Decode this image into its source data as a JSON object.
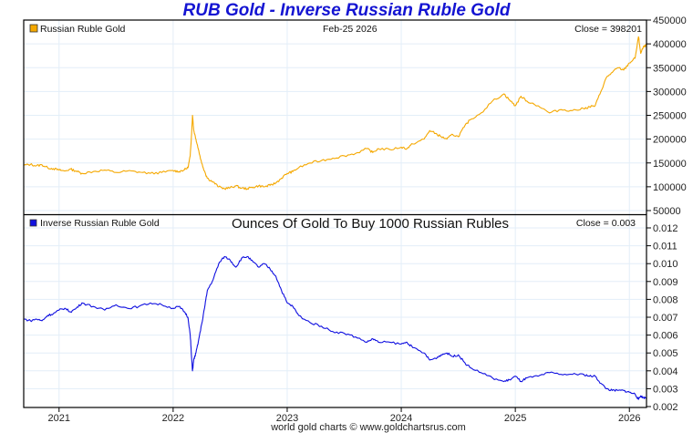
{
  "title": "RUB Gold - Inverse Russian Ruble Gold",
  "footer": "world gold charts © www.goldchartsrus.com",
  "colors": {
    "gold_series": "#f5a800",
    "inverse_series": "#1010e0",
    "title": "#1414d2",
    "grid": "#e3eef8"
  },
  "chart_data": [
    {
      "type": "line",
      "panel": "top",
      "legend": "Russian Ruble Gold",
      "date_label": "Feb-25  2026",
      "close_label": "Close = 398201",
      "ylim": [
        50000,
        450000
      ],
      "yticks": [
        50000,
        100000,
        150000,
        200000,
        250000,
        300000,
        350000,
        400000,
        450000
      ],
      "ytick_labels": [
        "50000",
        "100000",
        "150000",
        "200000",
        "250000",
        "300000",
        "350000",
        "400000",
        "450000"
      ],
      "xlim": [
        2020.69,
        2026.15
      ],
      "xticks": [
        2021,
        2022,
        2023,
        2024,
        2025,
        2026
      ],
      "xtick_labels": [
        "2021",
        "2022",
        "2023",
        "2024",
        "2025",
        "2026"
      ],
      "grid": true,
      "series": [
        {
          "name": "Russian Ruble Gold",
          "x": [
            2020.69,
            2020.75,
            2020.8,
            2020.85,
            2020.9,
            2020.95,
            2021.0,
            2021.05,
            2021.1,
            2021.15,
            2021.2,
            2021.3,
            2021.4,
            2021.5,
            2021.6,
            2021.7,
            2021.8,
            2021.9,
            2022.0,
            2022.05,
            2022.1,
            2022.13,
            2022.15,
            2022.16,
            2022.17,
            2022.18,
            2022.2,
            2022.22,
            2022.25,
            2022.28,
            2022.3,
            2022.35,
            2022.4,
            2022.45,
            2022.5,
            2022.55,
            2022.6,
            2022.65,
            2022.7,
            2022.75,
            2022.8,
            2022.85,
            2022.9,
            2022.95,
            2023.0,
            2023.05,
            2023.1,
            2023.2,
            2023.3,
            2023.4,
            2023.5,
            2023.6,
            2023.7,
            2023.75,
            2023.8,
            2023.9,
            2024.0,
            2024.05,
            2024.1,
            2024.2,
            2024.25,
            2024.3,
            2024.35,
            2024.4,
            2024.45,
            2024.5,
            2024.55,
            2024.6,
            2024.7,
            2024.8,
            2024.9,
            2024.95,
            2025.0,
            2025.05,
            2025.1,
            2025.2,
            2025.3,
            2025.4,
            2025.5,
            2025.6,
            2025.65,
            2025.7,
            2025.75,
            2025.8,
            2025.85,
            2025.9,
            2025.95,
            2026.0,
            2026.05,
            2026.08,
            2026.1,
            2026.12,
            2026.15
          ],
          "values": [
            145000,
            147000,
            144000,
            146000,
            140000,
            138000,
            135000,
            133000,
            137000,
            133000,
            128000,
            132000,
            135000,
            130000,
            133000,
            131000,
            128000,
            130000,
            134000,
            132000,
            136000,
            140000,
            165000,
            205000,
            250000,
            220000,
            200000,
            180000,
            150000,
            130000,
            118000,
            110000,
            100000,
            96000,
            98000,
            102000,
            97000,
            96000,
            99000,
            102000,
            100000,
            103000,
            108000,
            118000,
            128000,
            132000,
            140000,
            150000,
            155000,
            160000,
            165000,
            170000,
            180000,
            172000,
            180000,
            178000,
            183000,
            180000,
            190000,
            200000,
            218000,
            212000,
            205000,
            200000,
            210000,
            205000,
            225000,
            240000,
            255000,
            280000,
            295000,
            282000,
            270000,
            290000,
            280000,
            270000,
            255000,
            262000,
            260000,
            264000,
            268000,
            270000,
            300000,
            330000,
            340000,
            350000,
            345000,
            360000,
            370000,
            415000,
            380000,
            392000,
            398201
          ]
        }
      ]
    },
    {
      "type": "line",
      "panel": "bottom",
      "legend": "Inverse Russian Ruble Gold",
      "subtitle": "Ounces Of Gold To Buy 1000 Russian Rubles",
      "close_label": "Close = 0.003",
      "ylim": [
        0.002,
        0.0124
      ],
      "yticks": [
        0.002,
        0.003,
        0.004,
        0.005,
        0.006,
        0.007,
        0.008,
        0.009,
        0.01,
        0.011,
        0.012
      ],
      "ytick_labels": [
        "0.002",
        "0.003",
        "0.004",
        "0.005",
        "0.006",
        "0.007",
        "0.008",
        "0.009",
        "0.010",
        "0.011",
        "0.012"
      ],
      "xlim": [
        2020.69,
        2026.15
      ],
      "xticks": [
        2021,
        2022,
        2023,
        2024,
        2025,
        2026
      ],
      "xtick_labels": [
        "2021",
        "2022",
        "2023",
        "2024",
        "2025",
        "2026"
      ],
      "grid": true,
      "series": [
        {
          "name": "Inverse Russian Ruble Gold",
          "x": [
            2020.69,
            2020.75,
            2020.8,
            2020.85,
            2020.9,
            2020.95,
            2021.0,
            2021.05,
            2021.1,
            2021.15,
            2021.2,
            2021.3,
            2021.4,
            2021.5,
            2021.6,
            2021.7,
            2021.8,
            2021.9,
            2022.0,
            2022.05,
            2022.1,
            2022.13,
            2022.15,
            2022.16,
            2022.17,
            2022.18,
            2022.2,
            2022.22,
            2022.25,
            2022.28,
            2022.3,
            2022.35,
            2022.4,
            2022.45,
            2022.5,
            2022.55,
            2022.6,
            2022.65,
            2022.7,
            2022.75,
            2022.8,
            2022.85,
            2022.9,
            2022.95,
            2023.0,
            2023.05,
            2023.1,
            2023.2,
            2023.3,
            2023.4,
            2023.5,
            2023.6,
            2023.7,
            2023.75,
            2023.8,
            2023.9,
            2024.0,
            2024.05,
            2024.1,
            2024.2,
            2024.25,
            2024.3,
            2024.35,
            2024.4,
            2024.45,
            2024.5,
            2024.55,
            2024.6,
            2024.7,
            2024.8,
            2024.9,
            2024.95,
            2025.0,
            2025.05,
            2025.1,
            2025.2,
            2025.3,
            2025.4,
            2025.5,
            2025.6,
            2025.65,
            2025.7,
            2025.75,
            2025.8,
            2025.85,
            2025.9,
            2025.95,
            2026.0,
            2026.05,
            2026.08,
            2026.1,
            2026.12,
            2026.15
          ],
          "values": [
            0.0069,
            0.0068,
            0.0069,
            0.0068,
            0.0071,
            0.0072,
            0.0074,
            0.0075,
            0.0073,
            0.0075,
            0.0078,
            0.0076,
            0.0074,
            0.0077,
            0.0075,
            0.0076,
            0.0078,
            0.0077,
            0.0075,
            0.0076,
            0.0073,
            0.007,
            0.006,
            0.0049,
            0.004,
            0.0046,
            0.005,
            0.0056,
            0.0066,
            0.0077,
            0.0085,
            0.0091,
            0.01,
            0.0104,
            0.0102,
            0.0098,
            0.0103,
            0.0104,
            0.0101,
            0.0098,
            0.01,
            0.0097,
            0.0093,
            0.0085,
            0.0078,
            0.0076,
            0.0071,
            0.0067,
            0.0065,
            0.0062,
            0.0061,
            0.0059,
            0.0056,
            0.0058,
            0.0056,
            0.0056,
            0.0055,
            0.0056,
            0.0053,
            0.005,
            0.0046,
            0.0047,
            0.0049,
            0.005,
            0.0048,
            0.0049,
            0.0045,
            0.0042,
            0.0039,
            0.0036,
            0.0034,
            0.0035,
            0.0037,
            0.0034,
            0.0036,
            0.0037,
            0.0039,
            0.0038,
            0.0038,
            0.0038,
            0.0037,
            0.0037,
            0.0033,
            0.003,
            0.0029,
            0.0029,
            0.0029,
            0.0028,
            0.0027,
            0.0024,
            0.0026,
            0.0025,
            0.0025
          ]
        }
      ]
    }
  ]
}
